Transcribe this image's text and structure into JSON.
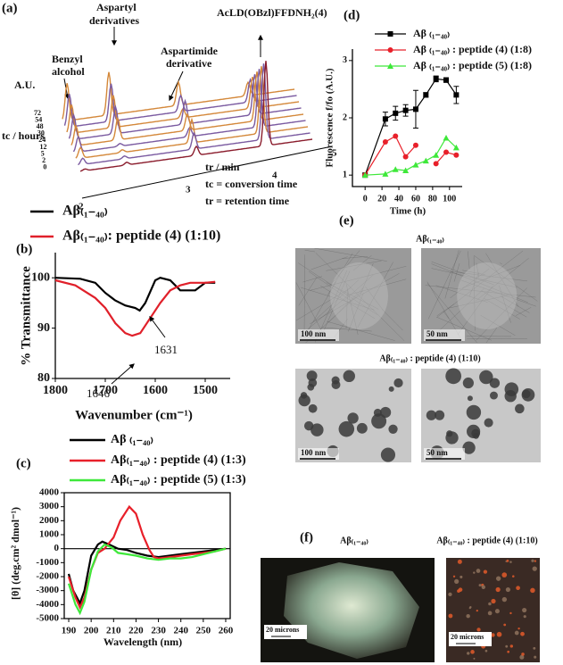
{
  "panel_a": {
    "label": "(a)",
    "compound": "AcLD(OBzl)FFDNH₂(4)",
    "y_label": "A.U.",
    "annotations": [
      "Aspartyl",
      "derivatives",
      "Benzyl",
      "alcohol",
      "Aspartimide",
      "derivative"
    ],
    "tc_ticks": [
      "72",
      "54",
      "48",
      "30",
      "24",
      "12",
      "5",
      "2",
      "0"
    ],
    "tc_label": "tc / hours",
    "tr_ticks": [
      "2",
      "3",
      "4",
      "5"
    ],
    "tr_label": "tr / min",
    "notes": [
      "tc = conversion time",
      "tr = retention time"
    ]
  },
  "chart_data": [
    {
      "type": "line",
      "label": "(b)",
      "x_label": "Wavenumber (cm⁻¹)",
      "y_label": "% Transmittance",
      "xlim": [
        1800,
        1450
      ],
      "ylim": [
        80,
        105
      ],
      "xticks": [
        1800,
        1700,
        1600,
        1500
      ],
      "yticks": [
        80,
        90,
        100
      ],
      "annotations": [
        "1646",
        "1631"
      ],
      "series": [
        {
          "name": "Aβ₍₁₋₄₀₎",
          "color": "#000000",
          "x": [
            1800,
            1750,
            1720,
            1700,
            1680,
            1660,
            1640,
            1631,
            1620,
            1600,
            1590,
            1570,
            1550,
            1520,
            1500,
            1480
          ],
          "values": [
            100,
            99.8,
            99,
            97,
            95.5,
            94.5,
            94,
            93.5,
            95,
            99.5,
            100,
            99.5,
            97.5,
            97.5,
            99,
            99
          ]
        },
        {
          "name": "Aβ₍₁₋₄₀₎: peptide (4) (1:10)",
          "color": "#e0202a",
          "x": [
            1800,
            1760,
            1720,
            1700,
            1680,
            1660,
            1646,
            1630,
            1610,
            1590,
            1570,
            1550,
            1530,
            1500,
            1480
          ],
          "values": [
            99.5,
            98.5,
            96,
            94,
            91,
            89,
            88.5,
            89,
            92,
            95,
            97.5,
            98.5,
            99,
            99,
            99.2
          ]
        }
      ]
    },
    {
      "type": "line",
      "label": "(c)",
      "x_label": "Wavelength (nm)",
      "y_label": "[θ] (deg.cm² dmol⁻¹)",
      "xlim": [
        188,
        262
      ],
      "ylim": [
        -5000,
        4000
      ],
      "xticks": [
        190,
        200,
        210,
        220,
        230,
        240,
        250,
        260
      ],
      "yticks": [
        -5000,
        -4000,
        -3000,
        -2000,
        -1000,
        0,
        1000,
        2000,
        3000,
        4000
      ],
      "series": [
        {
          "name": "Aβ ₍₁₋₄₀₎",
          "color": "#000000",
          "x": [
            190,
            192,
            195,
            197,
            200,
            203,
            205,
            208,
            212,
            216,
            220,
            225,
            230,
            235,
            240,
            245,
            250,
            255,
            260
          ],
          "values": [
            -1800,
            -3000,
            -3900,
            -3000,
            -500,
            300,
            500,
            300,
            0,
            -100,
            -300,
            -500,
            -600,
            -500,
            -400,
            -300,
            -200,
            -100,
            0
          ]
        },
        {
          "name": "Aβ₍₁₋₄₀₎ : peptide (4) (1:3)",
          "color": "#e8202a",
          "x": [
            190,
            193,
            195,
            197,
            200,
            203,
            206,
            210,
            213,
            217,
            220,
            223,
            226,
            228,
            230,
            235,
            240,
            245,
            250,
            255,
            260
          ],
          "values": [
            -2000,
            -3500,
            -4200,
            -3500,
            -1500,
            -300,
            0,
            800,
            2000,
            3000,
            2500,
            1000,
            -100,
            -600,
            -700,
            -600,
            -500,
            -400,
            -300,
            -200,
            0
          ]
        },
        {
          "name": "Aβ₍₁₋₄₀₎ : peptide (5) (1:3)",
          "color": "#3ee83a",
          "x": [
            190,
            193,
            195,
            197,
            200,
            203,
            206,
            209,
            212,
            216,
            220,
            225,
            230,
            235,
            240,
            245,
            250,
            255,
            260
          ],
          "values": [
            -2500,
            -4000,
            -4600,
            -3800,
            -1500,
            -200,
            300,
            100,
            -300,
            -400,
            -500,
            -700,
            -800,
            -700,
            -700,
            -600,
            -400,
            -200,
            0
          ]
        }
      ]
    },
    {
      "type": "line",
      "label": "(d)",
      "x_label": "Time (h)",
      "y_label": "Fluorescence f/fo (A.U.)",
      "xlim": [
        -15,
        115
      ],
      "ylim": [
        0.8,
        3.2
      ],
      "xticks": [
        0,
        20,
        40,
        60,
        80,
        100
      ],
      "yticks": [
        1,
        2,
        3
      ],
      "x": [
        0,
        24,
        36,
        48,
        60,
        72,
        84,
        96,
        108
      ],
      "series": [
        {
          "name": "Aβ ₍₁₋₄₀₎",
          "color": "#000000",
          "marker": "square",
          "values": [
            1,
            1.98,
            2.08,
            2.13,
            2.15,
            2.4,
            2.68,
            2.66,
            2.4
          ],
          "errors": [
            0,
            0.12,
            0.12,
            0.1,
            0.33,
            0.04,
            0.05,
            0.04,
            0.15
          ]
        },
        {
          "name": "Aβ ₍₁₋₄₀₎ : peptide (4) (1:8)",
          "color": "#e8202a",
          "marker": "circle",
          "values": [
            1,
            1.58,
            1.68,
            1.32,
            1.52,
            null,
            1.2,
            1.4,
            1.35
          ]
        },
        {
          "name": "Aβ ₍₁₋₄₀₎ : peptide (5) (1:8)",
          "color": "#3ee83a",
          "marker": "triangle",
          "values": [
            1,
            1.02,
            1.1,
            1.08,
            1.18,
            1.25,
            1.35,
            1.65,
            1.48
          ]
        }
      ]
    }
  ],
  "panel_e": {
    "label": "(e)",
    "top_title": "Aβ₍₁₋₄₀₎",
    "bottom_title": "Aβ₍₁₋₄₀₎ : peptide (4) (1:10)",
    "scale_bars": [
      "100 nm",
      "50 nm",
      "100 nm",
      "50 nm"
    ]
  },
  "panel_f": {
    "label": "(f)",
    "titles": [
      "Aβ₍₁₋₄₀₎",
      "Aβ₍₁₋₄₀₎ : peptide (4) (1:10)"
    ],
    "scale_bar": "20 microns"
  }
}
